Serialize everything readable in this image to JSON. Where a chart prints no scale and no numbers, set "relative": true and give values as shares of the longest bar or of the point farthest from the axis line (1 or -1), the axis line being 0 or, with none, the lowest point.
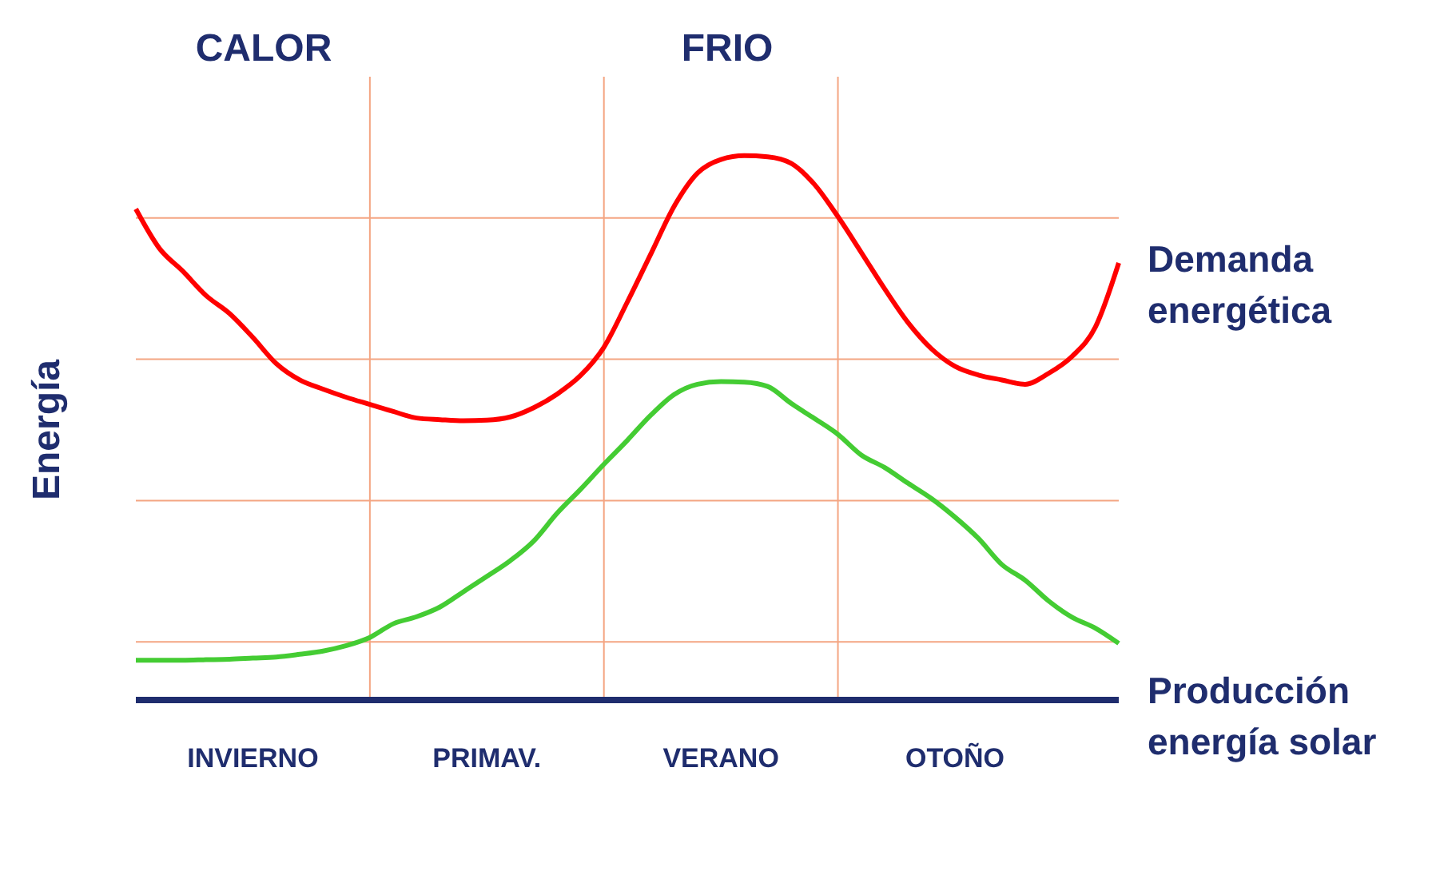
{
  "chart_data": {
    "type": "line",
    "relative": true,
    "ylabel": "Energía",
    "annotations": [
      "CALOR",
      "FRIO"
    ],
    "categories": [
      null,
      null,
      null,
      null,
      null,
      "INVIERNO",
      null,
      null,
      null,
      null,
      null,
      null,
      null,
      null,
      null,
      "PRIMAV.",
      null,
      null,
      null,
      null,
      null,
      null,
      null,
      null,
      null,
      "VERANO",
      null,
      null,
      null,
      null,
      null,
      null,
      null,
      null,
      null,
      "OTOÑO",
      null,
      null,
      null,
      null,
      null,
      null,
      null
    ],
    "grid": true,
    "legend": "right",
    "marker": "none",
    "line_style": "solid",
    "series": [
      {
        "name": "Demanda energética",
        "color": "#ff0000",
        "values": [
          0.902,
          0.83,
          0.788,
          0.743,
          0.71,
          0.666,
          0.618,
          0.588,
          0.571,
          0.556,
          0.543,
          0.53,
          0.518,
          0.515,
          0.513,
          0.514,
          0.52,
          0.537,
          0.562,
          0.596,
          0.648,
          0.731,
          0.819,
          0.907,
          0.968,
          0.993,
          1,
          0.998,
          0.986,
          0.947,
          0.888,
          0.822,
          0.755,
          0.693,
          0.645,
          0.613,
          0.597,
          0.588,
          0.58,
          0.6,
          0.631,
          0.685,
          0.803
        ]
      },
      {
        "name": "Producción energía solar",
        "color": "#44cc33",
        "values": [
          0.073,
          0.073,
          0.073,
          0.074,
          0.075,
          0.077,
          0.079,
          0.084,
          0.09,
          0.1,
          0.115,
          0.14,
          0.153,
          0.171,
          0.199,
          0.227,
          0.256,
          0.292,
          0.343,
          0.387,
          0.433,
          0.477,
          0.523,
          0.561,
          0.58,
          0.585,
          0.584,
          0.576,
          0.545,
          0.517,
          0.488,
          0.45,
          0.427,
          0.398,
          0.37,
          0.336,
          0.297,
          0.249,
          0.22,
          0.182,
          0.152,
          0.132,
          0.104
        ]
      }
    ]
  }
}
